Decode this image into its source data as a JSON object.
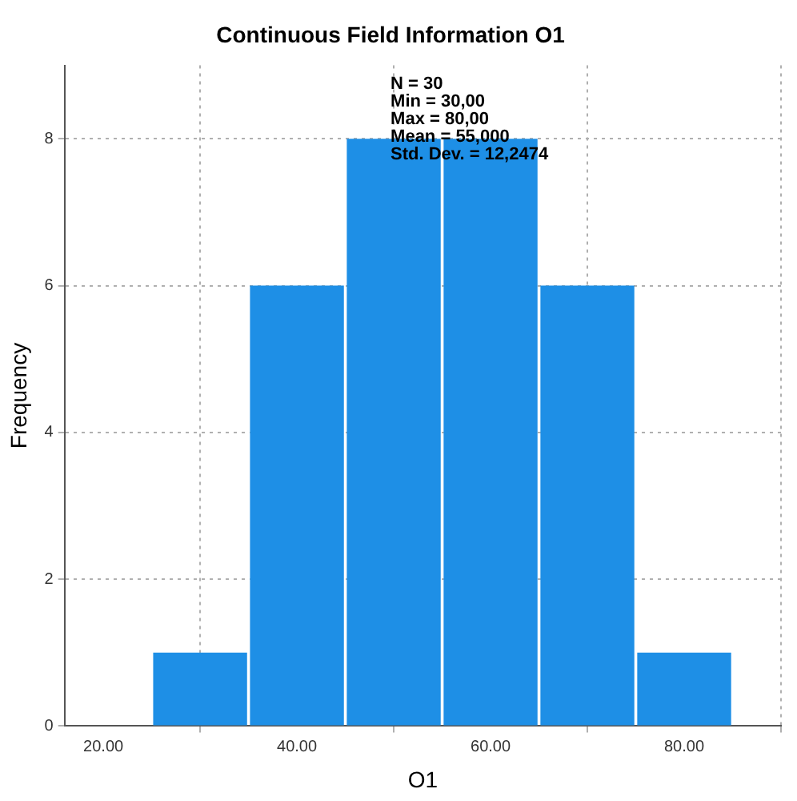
{
  "chart_data": {
    "type": "histogram",
    "title": "Continuous Field Information O1",
    "xlabel": "O1",
    "ylabel": "Frequency",
    "bins": [
      25,
      35,
      45,
      55,
      65,
      75,
      85
    ],
    "values": [
      1,
      6,
      8,
      8,
      6,
      1
    ],
    "color": "#1e8fe6",
    "xlim": [
      16,
      90
    ],
    "xticks": [
      {
        "value": 20,
        "label": "20.00"
      },
      {
        "value": 40,
        "label": "40.00"
      },
      {
        "value": 60,
        "label": "60.00"
      },
      {
        "value": 80,
        "label": "80.00"
      }
    ],
    "ylim": [
      0,
      9
    ],
    "yticks": [
      0,
      2,
      4,
      6,
      8
    ],
    "grid": true,
    "legend": false,
    "annotations": [
      "N = 30",
      "Min = 30,00",
      "Max = 80,00",
      "Mean = 55,000",
      "Std. Dev. = 12,2474"
    ]
  }
}
